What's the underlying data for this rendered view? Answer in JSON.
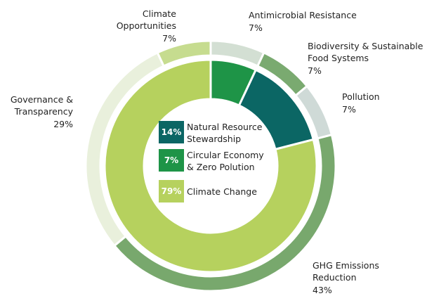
{
  "chart_data": [
    {
      "type": "donut",
      "categories": [
        "Antimicrobial Resistance",
        "Biodiversity & Sustainable Food Systems",
        "Pollution",
        "GHG Emissions Reduction",
        "Governance & Transparency",
        "Climate Opportunities"
      ],
      "values": [
        7,
        7,
        7,
        43,
        29,
        7
      ],
      "value_labels": [
        "7%",
        "7%",
        "7%",
        "43%",
        "29%",
        "7%"
      ],
      "colors": [
        "#d3dfd3",
        "#7aaa70",
        "#cfdad7",
        "#78a86d",
        "#e9f0dc",
        "#c6dc8f"
      ]
    },
    {
      "type": "donut",
      "categories": [
        "Circular Economy & Zero Polution",
        "Natural Resource Stewardship",
        "Climate Change"
      ],
      "values": [
        7,
        14,
        79
      ],
      "value_labels": [
        "7%",
        "14%",
        "79%"
      ],
      "colors": [
        "#1e9447",
        "#0b6664",
        "#b6d15e"
      ]
    }
  ]
}
